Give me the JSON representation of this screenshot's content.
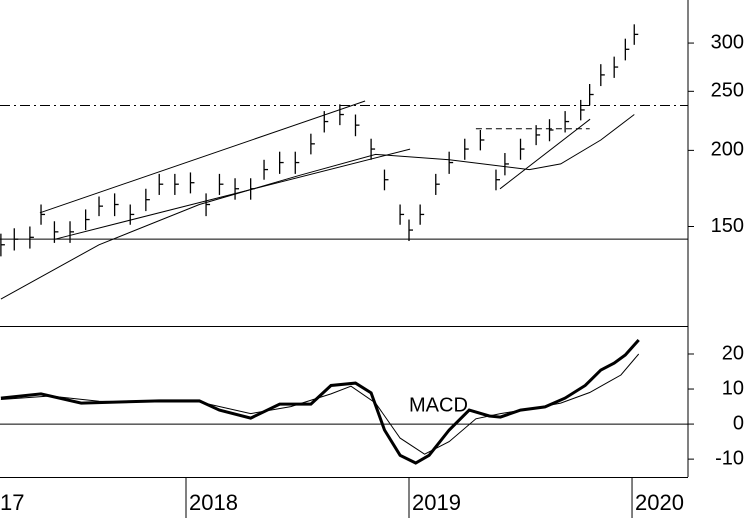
{
  "chart_data": [
    {
      "type": "ohlc",
      "log_scale": true,
      "x": [
        2017.17,
        2017.23,
        2017.3,
        2017.35,
        2017.41,
        2017.48,
        2017.55,
        2017.61,
        2017.68,
        2017.75,
        2017.82,
        2017.88,
        2017.95,
        2018.02,
        2018.09,
        2018.15,
        2018.22,
        2018.29,
        2018.35,
        2018.42,
        2018.49,
        2018.56,
        2018.62,
        2018.69,
        2018.76,
        2018.83,
        2018.89,
        2018.96,
        2019.0,
        2019.05,
        2019.12,
        2019.18,
        2019.25,
        2019.32,
        2019.39,
        2019.43,
        2019.5,
        2019.57,
        2019.63,
        2019.7,
        2019.77,
        2019.81,
        2019.86,
        2019.92,
        2019.97,
        2020.01
      ],
      "high": [
        146,
        149,
        150,
        163,
        153,
        153,
        160,
        168,
        170,
        163,
        173,
        183,
        183,
        184,
        170,
        183,
        180,
        180,
        193,
        199,
        199,
        213,
        232,
        238,
        229,
        209,
        186,
        163,
        154,
        163,
        183,
        199,
        209,
        216,
        186,
        198,
        209,
        220,
        225,
        232,
        242,
        257,
        277,
        285,
        305,
        322
      ],
      "low": [
        134,
        137,
        138,
        151,
        141,
        141,
        148,
        156,
        156,
        151,
        159,
        169,
        169,
        170,
        156,
        169,
        166,
        166,
        179,
        183,
        183,
        197,
        214,
        220,
        211,
        193,
        172,
        151,
        142,
        151,
        169,
        183,
        193,
        200,
        172,
        182,
        193,
        204,
        207,
        214,
        224,
        237,
        255,
        263,
        281,
        298
      ],
      "close": [
        140,
        143,
        144,
        157,
        147,
        147,
        154,
        162,
        163,
        157,
        166,
        176,
        176,
        177,
        163,
        176,
        173,
        173,
        186,
        191,
        191,
        205,
        223,
        229,
        220,
        201,
        179,
        157,
        148,
        157,
        176,
        191,
        201,
        208,
        179,
        190,
        201,
        212,
        216,
        223,
        233,
        247,
        266,
        274,
        293,
        310
      ],
      "moving_average": {
        "x": [
          2017.17,
          2017.61,
          2018.06,
          2018.51,
          2018.85,
          2019.18,
          2019.54,
          2019.68,
          2019.86,
          2020.01
        ],
        "values": [
          114,
          140,
          163,
          182,
          197,
          193,
          186,
          190,
          208,
          229
        ]
      },
      "trendlines": [
        {
          "x": [
            2017.345,
            2018.803
          ],
          "values": [
            158,
            241
          ],
          "style": "solid"
        },
        {
          "x": [
            2017.413,
            2019.005
          ],
          "values": [
            143,
            201
          ],
          "style": "solid"
        },
        {
          "x": [
            2019.408,
            2019.812
          ],
          "values": [
            173,
            225
          ],
          "style": "solid"
        },
        {
          "x": [
            2019.3,
            2019.81
          ],
          "values": [
            217,
            217
          ],
          "style": "dashed"
        }
      ],
      "reference_lines": [
        {
          "value": 237,
          "style": "dashdot"
        },
        {
          "value": 143,
          "style": "solid"
        }
      ],
      "xlim": [
        2017.166,
        2020.251
      ],
      "ylim": [
        103,
        353
      ],
      "yticks": [
        150,
        200,
        250,
        300
      ],
      "color": "#000000"
    },
    {
      "type": "line",
      "annotation": "MACD",
      "series": [
        {
          "x": [
            2017.17,
            2017.35,
            2017.53,
            2017.7,
            2017.88,
            2018.06,
            2018.15,
            2018.29,
            2018.42,
            2018.56,
            2018.65,
            2018.76,
            2018.83,
            2018.89,
            2018.96,
            2019.03,
            2019.09,
            2019.18,
            2019.27,
            2019.36,
            2019.41,
            2019.5,
            2019.61,
            2019.7,
            2019.79,
            2019.86,
            2019.92,
            2019.97,
            2020.03
          ],
          "values": [
            7.4,
            8.6,
            6,
            6.3,
            6.6,
            6.6,
            4,
            1.7,
            5.7,
            5.7,
            11,
            11.7,
            8.9,
            -1.7,
            -8.9,
            -11.1,
            -8.9,
            -1.7,
            4,
            2.3,
            2,
            4,
            4.9,
            7.4,
            11,
            15.4,
            17.4,
            19.7,
            24
          ],
          "color": "#000000",
          "width": 3
        },
        {
          "x": [
            2017.17,
            2017.39,
            2017.61,
            2017.84,
            2018.06,
            2018.29,
            2018.47,
            2018.65,
            2018.74,
            2018.85,
            2018.96,
            2019.07,
            2019.18,
            2019.3,
            2019.41,
            2019.54,
            2019.68,
            2019.81,
            2019.95,
            2020.03
          ],
          "values": [
            7,
            8,
            6.5,
            6.3,
            6.3,
            3,
            5,
            8.6,
            10.8,
            6,
            -4,
            -8.6,
            -5,
            1.5,
            3,
            4.3,
            6,
            9,
            14,
            20
          ],
          "color": "#000000",
          "width": 1
        }
      ],
      "reference_lines": [
        {
          "value": 0,
          "style": "solid"
        }
      ],
      "xlim": [
        2017.166,
        2020.251
      ],
      "ylim": [
        -15.1,
        27.7
      ],
      "yticks": [
        -10,
        0,
        10,
        20
      ],
      "xticks": [
        {
          "value": 2017,
          "label": "17"
        },
        2018,
        2019,
        2020
      ]
    }
  ]
}
